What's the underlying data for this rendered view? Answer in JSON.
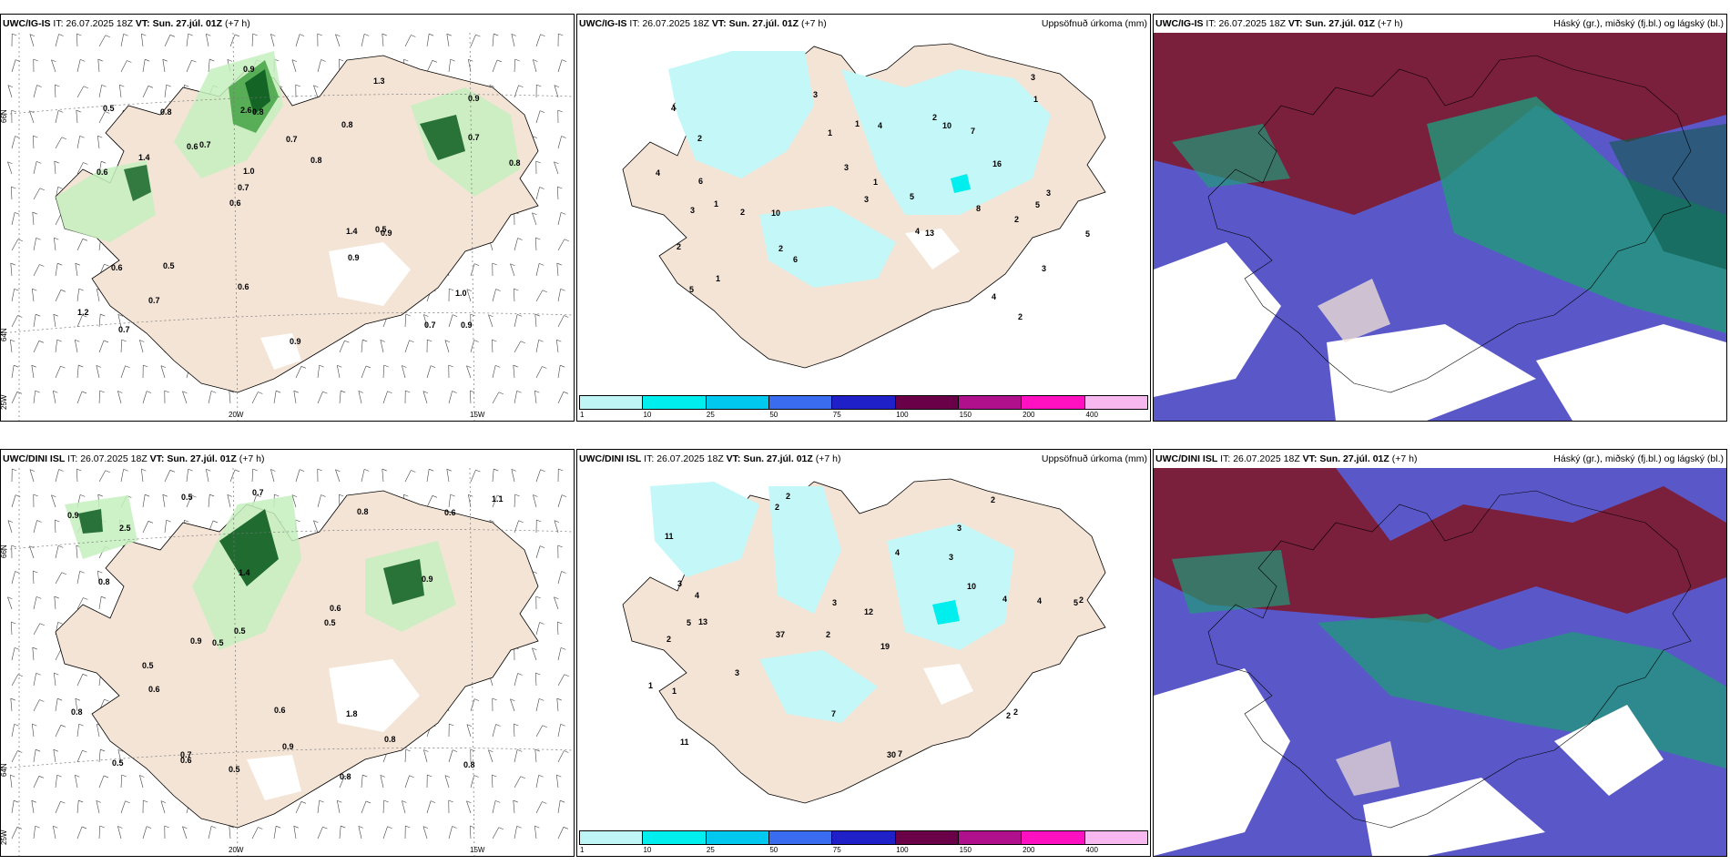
{
  "rows": [
    {
      "model": "UWC/IG-IS",
      "it_label": "IT:",
      "it": "26.07.2025 18Z",
      "vt_label": "VT:",
      "vt": "Sun. 27.júl. 01Z",
      "lead": "(+7 h)",
      "labels": [
        "0.9",
        "0.6",
        "0.9",
        "0.6",
        "0.8",
        "0.7",
        "2.6",
        "0.7",
        "0.6",
        "0.7",
        "1.2",
        "0.7",
        "0.8",
        "0.8",
        "0.9",
        "0.5",
        "0.9",
        "0.8",
        "1.4",
        "0.7",
        "0.7",
        "0.6",
        "1.0",
        "0.8",
        "1.3",
        "0.5",
        "0.7",
        "1.0",
        "0.5",
        "0.9",
        "0.6",
        "1.4",
        "0.9"
      ]
    },
    {
      "model": "UWC/DINI ISL",
      "it_label": "IT:",
      "it": "26.07.2025 18Z",
      "vt_label": "VT:",
      "vt": "Sun. 27.júl. 01Z",
      "lead": "(+7 h)",
      "labels": [
        "0.5",
        "0.8",
        "0.7",
        "0.8",
        "0.5",
        "2.5",
        "0.9",
        "0.8",
        "0.7",
        "1.4",
        "0.6",
        "0.9",
        "0.5",
        "0.6",
        "0.8",
        "0.5",
        "0.8",
        "0.6",
        "0.5",
        "0.9",
        "1.8",
        "1.1",
        "0.6",
        "0.5",
        "0.9",
        "0.5",
        "0.8",
        "0.6"
      ]
    }
  ],
  "precip_title": "Uppsöfnuð úrkoma (mm)",
  "cloud_title": "Háský (gr.), miðský (fj.bl.) og lágský (bl.)",
  "precip_labels_top": [
    "2",
    "1",
    "4",
    "4",
    "3",
    "2",
    "1",
    "10",
    "7",
    "1",
    "10",
    "4",
    "6",
    "3",
    "5",
    "2",
    "8",
    "1",
    "4",
    "5",
    "3",
    "4",
    "16",
    "5",
    "3",
    "6",
    "2",
    "3",
    "3",
    "1",
    "13",
    "3",
    "2",
    "2",
    "1",
    "2",
    "5"
  ],
  "precip_labels_bottom": [
    "2",
    "3",
    "5",
    "2",
    "19",
    "13",
    "11",
    "3",
    "2",
    "4",
    "12",
    "11",
    "2",
    "37",
    "30",
    "7",
    "7",
    "2",
    "10",
    "3",
    "4",
    "5",
    "2",
    "4",
    "1",
    "3",
    "3",
    "4",
    "2",
    "1",
    "2"
  ],
  "colorbar": {
    "ticks": [
      "1",
      "10",
      "25",
      "50",
      "75",
      "100",
      "150",
      "200",
      "400"
    ],
    "colors": [
      "#bff5f5",
      "#00eeee",
      "#00c8ee",
      "#3a6cf0",
      "#2020c8",
      "#6a0048",
      "#b0108c",
      "#ff10c0",
      "#f7b8f0"
    ]
  },
  "axis_labels": {
    "lat66": "66N",
    "lat64": "64N",
    "lon25": "25W",
    "lon20": "20W",
    "lon15": "15W"
  },
  "colors": {
    "land": "#f4e4d6",
    "precip_light": "#c6f0be",
    "precip_mid": "#4aa64a",
    "precip_dark": "#0c5c20",
    "accum_light": "#c4f7f8",
    "high_cloud": "#7a1f3c",
    "mid_cloud": "#5a58c8",
    "low_cloud": "#1f9a7a"
  }
}
